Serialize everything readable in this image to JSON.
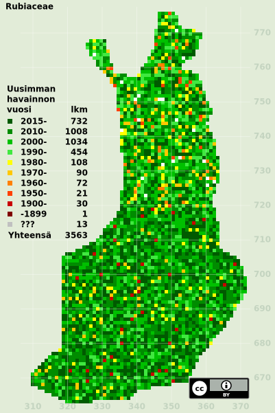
{
  "title": "Rubiaceae",
  "legend": {
    "title": [
      "Uusimman",
      "havainnon",
      "vuosi"
    ],
    "count_header": "lkm",
    "items": [
      {
        "label": "2015-",
        "count": 732,
        "color": "#005a00"
      },
      {
        "label": "2010-",
        "count": 1008,
        "color": "#008c00"
      },
      {
        "label": "2000-",
        "count": 1034,
        "color": "#00c000"
      },
      {
        "label": "1990-",
        "count": 454,
        "color": "#40e840"
      },
      {
        "label": "1980-",
        "count": 108,
        "color": "#ffff00"
      },
      {
        "label": "1970-",
        "count": 90,
        "color": "#ffc800"
      },
      {
        "label": "1960-",
        "count": 72,
        "color": "#ff8000"
      },
      {
        "label": "1950-",
        "count": 21,
        "color": "#ff4000"
      },
      {
        "label": "1900-",
        "count": 30,
        "color": "#c80000"
      },
      {
        "label": "-1899",
        "count": 1,
        "color": "#800000"
      },
      {
        "label": "???",
        "count": 13,
        "color": "#c0c0c0"
      }
    ],
    "total_label": "Yhteensä",
    "total": 3563
  },
  "x_axis": [
    310,
    320,
    330,
    340,
    350,
    360,
    370
  ],
  "y_axis": [
    770,
    760,
    750,
    740,
    730,
    720,
    710,
    700,
    690,
    680,
    670
  ],
  "license": {
    "cc": "cc",
    "by": "BY"
  }
}
